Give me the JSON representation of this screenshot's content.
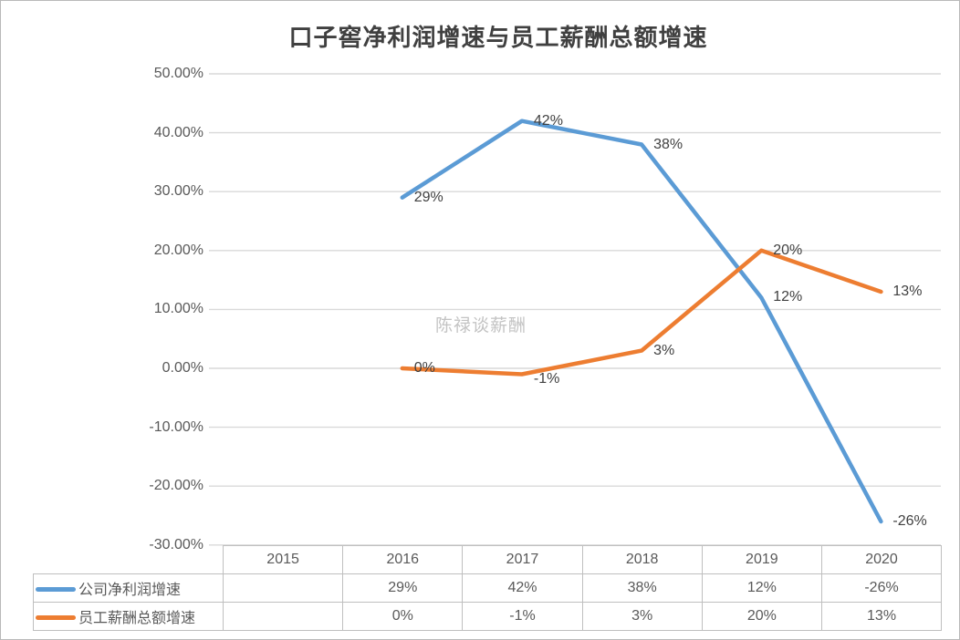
{
  "title": "口子窖净利润增速与员工薪酬总额增速",
  "watermark": "陈禄谈薪酬",
  "colors": {
    "series1": "#5B9BD5",
    "series2": "#ED7D31",
    "gridline": "#D9D9D9",
    "axis_text": "#595959",
    "label_text": "#404040",
    "table_border": "#BFBFBF",
    "watermark_text": "#C3C3C3"
  },
  "chart_data": {
    "type": "line",
    "title": "口子窖净利润增速与员工薪酬总额增速",
    "categories": [
      "2015",
      "2016",
      "2017",
      "2018",
      "2019",
      "2020"
    ],
    "series": [
      {
        "name": "公司净利润增速",
        "color": "#5B9BD5",
        "values": [
          null,
          29,
          42,
          38,
          12,
          -26
        ],
        "labels": [
          "",
          "29%",
          "42%",
          "38%",
          "12%",
          "-26%"
        ]
      },
      {
        "name": "员工薪酬总额增速",
        "color": "#ED7D31",
        "values": [
          null,
          0,
          -1,
          3,
          20,
          13
        ],
        "labels": [
          "",
          "0%",
          "-1%",
          "3%",
          "20%",
          "13%"
        ]
      }
    ],
    "ylim": [
      -30,
      50
    ],
    "ytick_step": 10,
    "ytick_labels": [
      "50.00%",
      "40.00%",
      "30.00%",
      "20.00%",
      "10.00%",
      "0.00%",
      "-10.00%",
      "-20.00%",
      "-30.00%"
    ],
    "grid": "horizontal-only",
    "legend_position": "data-table-left",
    "data_table_shown": true
  }
}
